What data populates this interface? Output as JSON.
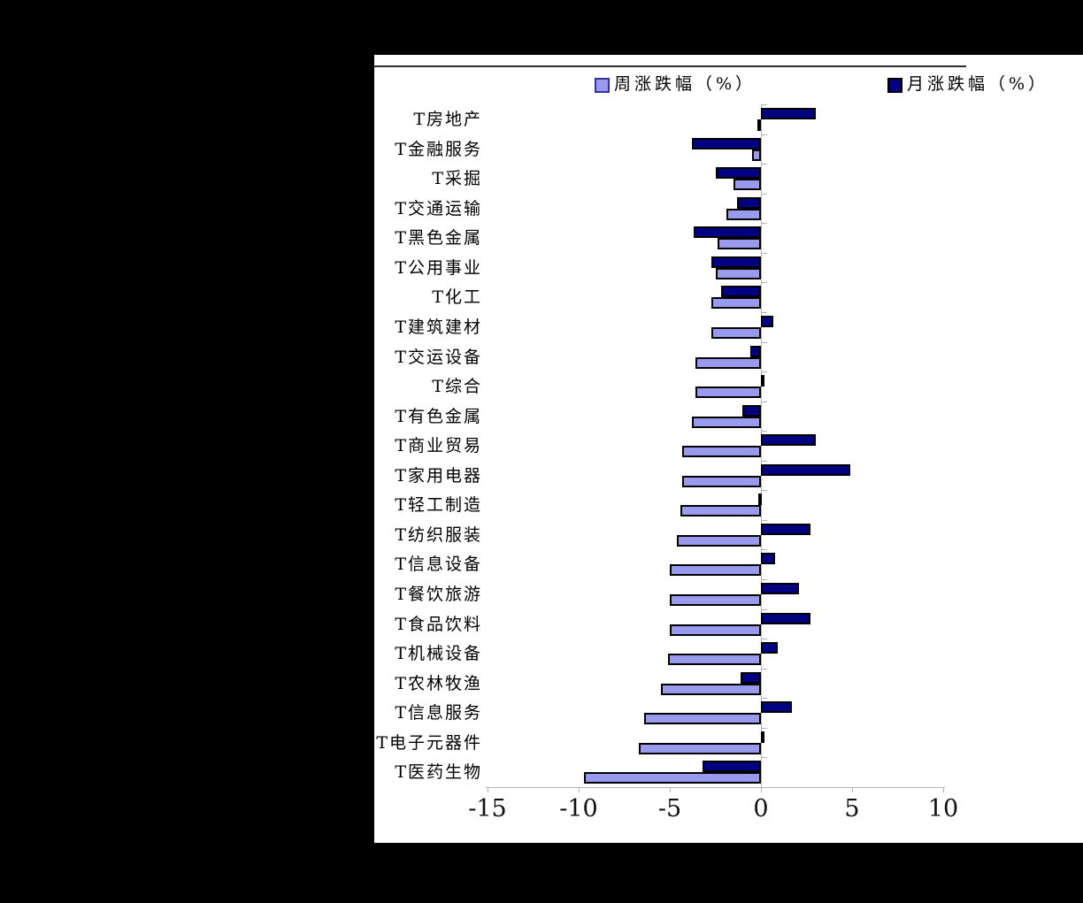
{
  "chart_data": {
    "type": "bar",
    "orientation": "horizontal",
    "title": "",
    "xlabel": "",
    "ylabel": "",
    "xlim": [
      -15,
      10
    ],
    "xticks": [
      -15,
      -10,
      -5,
      0,
      5,
      10
    ],
    "xtick_labels": [
      "-15",
      "-10",
      "-5",
      "0",
      "5",
      "10"
    ],
    "grid": false,
    "legend_position": "top",
    "categories": [
      "T房地产",
      "T金融服务",
      "T采掘",
      "T交通运输",
      "T黑色金属",
      "T公用事业",
      "T化工",
      "T建筑建材",
      "T交运设备",
      "T综合",
      "T有色金属",
      "T商业贸易",
      "T家用电器",
      "T轻工制造",
      "T纺织服装",
      "T信息设备",
      "T餐饮旅游",
      "T食品饮料",
      "T机械设备",
      "T农林牧渔",
      "T信息服务",
      "T电子元器件",
      "T医药生物"
    ],
    "series": [
      {
        "name": "周涨跌幅（%）",
        "color": "#9999ee",
        "values": [
          -0.2,
          -0.5,
          -1.5,
          -1.9,
          -2.4,
          -2.5,
          -2.7,
          -2.7,
          -3.6,
          -3.6,
          -3.8,
          -4.3,
          -4.3,
          -4.4,
          -4.6,
          -5.0,
          -5.0,
          -5.0,
          -5.1,
          -5.5,
          -6.4,
          -6.7,
          -9.7
        ]
      },
      {
        "name": "月涨跌幅（%）",
        "color": "#000080",
        "values": [
          3.0,
          -3.8,
          -2.5,
          -1.3,
          -3.7,
          -2.7,
          -2.2,
          0.7,
          -0.6,
          0.15,
          -1.0,
          3.0,
          4.9,
          -0.1,
          2.7,
          0.8,
          2.1,
          2.7,
          0.9,
          -1.1,
          1.7,
          0.2,
          -3.2
        ]
      }
    ],
    "colors": {
      "sheet_background": "#ffffff",
      "page_background": "#000000",
      "axis": "#b3b3b3",
      "bar_border": "#000000",
      "header_rule": "#2e2e2e",
      "text": "#000000"
    }
  }
}
